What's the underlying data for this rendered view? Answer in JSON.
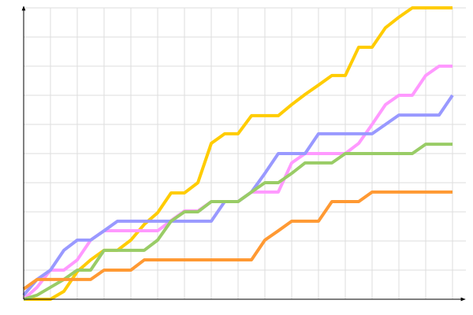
{
  "chart_data": {
    "type": "line",
    "x": [
      0,
      1,
      2,
      3,
      4,
      5,
      6,
      7,
      8,
      9,
      10,
      11,
      12,
      13,
      14,
      15,
      16,
      17,
      18,
      19,
      20,
      21,
      22,
      23,
      24,
      25,
      26,
      27,
      28,
      29,
      30,
      31,
      32
    ],
    "xlim": [
      0,
      33
    ],
    "ylim": [
      0,
      10
    ],
    "xticks": [
      0,
      2,
      4,
      6,
      8,
      10,
      12,
      14,
      16,
      18,
      20,
      22,
      24,
      26,
      28,
      30,
      32
    ],
    "yticks": [
      0,
      1,
      2,
      3,
      4,
      5,
      6,
      7,
      8,
      9,
      10
    ],
    "grid": true,
    "series": [
      {
        "color": "#ffcc00",
        "values": [
          0,
          0,
          0,
          0.27,
          0.95,
          1.35,
          1.68,
          1.68,
          2.03,
          2.57,
          2.97,
          3.65,
          3.65,
          4,
          5.35,
          5.68,
          5.68,
          6.3,
          6.3,
          6.3,
          6.68,
          7.03,
          7.35,
          7.68,
          7.68,
          8.65,
          8.65,
          9.32,
          9.68,
          10,
          10,
          10,
          10
        ]
      },
      {
        "color": "#ff99ff",
        "values": [
          0,
          0.41,
          1,
          1,
          1.35,
          2.03,
          2.35,
          2.35,
          2.35,
          2.35,
          2.35,
          2.7,
          3.03,
          3.03,
          3.35,
          3.35,
          3.35,
          3.68,
          3.68,
          3.68,
          4.68,
          5,
          5,
          5,
          5,
          5.35,
          6,
          6.68,
          7,
          7,
          7.68,
          8,
          8
        ]
      },
      {
        "color": "#9999ff",
        "values": [
          0.14,
          0.68,
          1,
          1.68,
          2.03,
          2.03,
          2.35,
          2.68,
          2.68,
          2.68,
          2.68,
          2.68,
          2.68,
          2.68,
          2.68,
          3.35,
          3.35,
          3.68,
          4.32,
          5,
          5,
          5,
          5.68,
          5.68,
          5.68,
          5.68,
          5.68,
          6,
          6.32,
          6.32,
          6.32,
          6.32,
          7
        ]
      },
      {
        "color": "#99cc66",
        "values": [
          0,
          0.14,
          0.41,
          0.68,
          1,
          1,
          1.68,
          1.68,
          1.68,
          1.68,
          2.03,
          2.68,
          3,
          3,
          3.35,
          3.35,
          3.35,
          3.68,
          4,
          4,
          4.32,
          4.68,
          4.68,
          4.68,
          5,
          5,
          5,
          5,
          5,
          5,
          5.32,
          5.32,
          5.32
        ]
      },
      {
        "color": "#ff9933",
        "values": [
          0.35,
          0.68,
          0.68,
          0.68,
          0.68,
          0.68,
          1,
          1,
          1,
          1.35,
          1.35,
          1.35,
          1.35,
          1.35,
          1.35,
          1.35,
          1.35,
          1.35,
          2.03,
          2.35,
          2.68,
          2.68,
          2.68,
          3.35,
          3.35,
          3.35,
          3.68,
          3.68,
          3.68,
          3.68,
          3.68,
          3.68,
          3.68
        ]
      }
    ]
  }
}
